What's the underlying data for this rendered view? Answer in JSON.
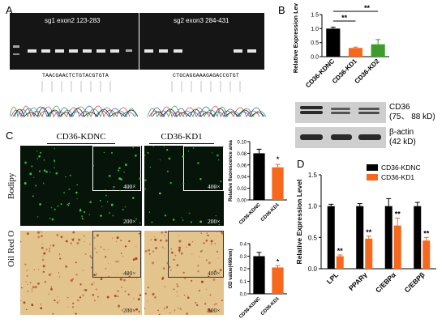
{
  "panels": {
    "A": {
      "letter": "A",
      "gel_titles": [
        "sg1 exon2 123-283",
        "sg2 exon3 284-431"
      ],
      "sequences": [
        "TAACGAACTCTGTACGTGTA",
        "CTGCAGGAAAGAGACCGTGT"
      ]
    },
    "B": {
      "letter": "B",
      "wb_labels": {
        "cd36": "CD36",
        "cd36_kd": "(75、 88 kD)",
        "actin": "β-actin",
        "actin_kd": "(42 kD)"
      }
    },
    "C": {
      "letter": "C",
      "column_titles": [
        "CD36-KDNC",
        "CD36-KD1"
      ],
      "row_labels": [
        "Bodipy",
        "Oil Red O"
      ],
      "mag_inset": "400×",
      "mag_main": "200×"
    },
    "D": {
      "letter": "D"
    }
  },
  "colors": {
    "black_bar": "#000000",
    "orange_bar": "#f5681e",
    "gel_bg": "#151515",
    "band": "#e6e6e6"
  },
  "chart_data": [
    {
      "type": "bar",
      "panel": "B",
      "ylabel": "Relative Expression Level",
      "categories": [
        "CD36-KDNC",
        "CD36-KD1",
        "CD36-KD2"
      ],
      "values": [
        1.0,
        0.31,
        0.44
      ],
      "errors": [
        0.05,
        0.03,
        0.17
      ],
      "colors": [
        "#000000",
        "#f5681e",
        "#3d9c2b"
      ],
      "ylim": [
        0,
        1.5
      ],
      "yticks": [
        "0.0",
        "0.5",
        "1.0",
        "1.5"
      ],
      "significance": [
        "**",
        "**"
      ]
    },
    {
      "type": "bar",
      "panel": "C-top",
      "ylabel": "Relative fluorescence area",
      "categories": [
        "CD36-KDNC",
        "CD36-KD1"
      ],
      "values": [
        0.08,
        0.056
      ],
      "errors": [
        0.007,
        0.005
      ],
      "colors": [
        "#000000",
        "#f5681e"
      ],
      "ylim": [
        0,
        0.1
      ],
      "yticks": [
        "0.00",
        "0.02",
        "0.04",
        "0.06",
        "0.08",
        "0.10"
      ],
      "significance": [
        "*"
      ]
    },
    {
      "type": "bar",
      "panel": "C-bottom",
      "ylabel": "OD value(490nm)",
      "categories": [
        "CD36-KDNC",
        "CD36-KD1"
      ],
      "values": [
        0.3,
        0.21
      ],
      "errors": [
        0.03,
        0.015
      ],
      "colors": [
        "#000000",
        "#f5681e"
      ],
      "ylim": [
        0,
        0.4
      ],
      "yticks": [
        "0.0",
        "0.1",
        "0.2",
        "0.3",
        "0.4"
      ],
      "significance": [
        "*"
      ]
    },
    {
      "type": "bar",
      "panel": "D",
      "ylabel": "Relative Expression Level",
      "categories": [
        "LPL",
        "PPARγ",
        "C/EBPα",
        "C/EBPβ"
      ],
      "series": [
        {
          "name": "CD36-KDNC",
          "values": [
            1.0,
            1.0,
            1.0,
            1.0
          ],
          "errors": [
            0.03,
            0.04,
            0.12,
            0.06
          ]
        },
        {
          "name": "CD36-KD1",
          "values": [
            0.2,
            0.48,
            0.69,
            0.45
          ],
          "errors": [
            0.02,
            0.04,
            0.12,
            0.05
          ]
        }
      ],
      "colors": [
        "#000000",
        "#f5681e"
      ],
      "ylim": [
        0,
        1.5
      ],
      "yticks": [
        "0.0",
        "0.5",
        "1.0",
        "1.5"
      ],
      "significance": [
        "**",
        "**",
        "**",
        "**"
      ]
    }
  ]
}
